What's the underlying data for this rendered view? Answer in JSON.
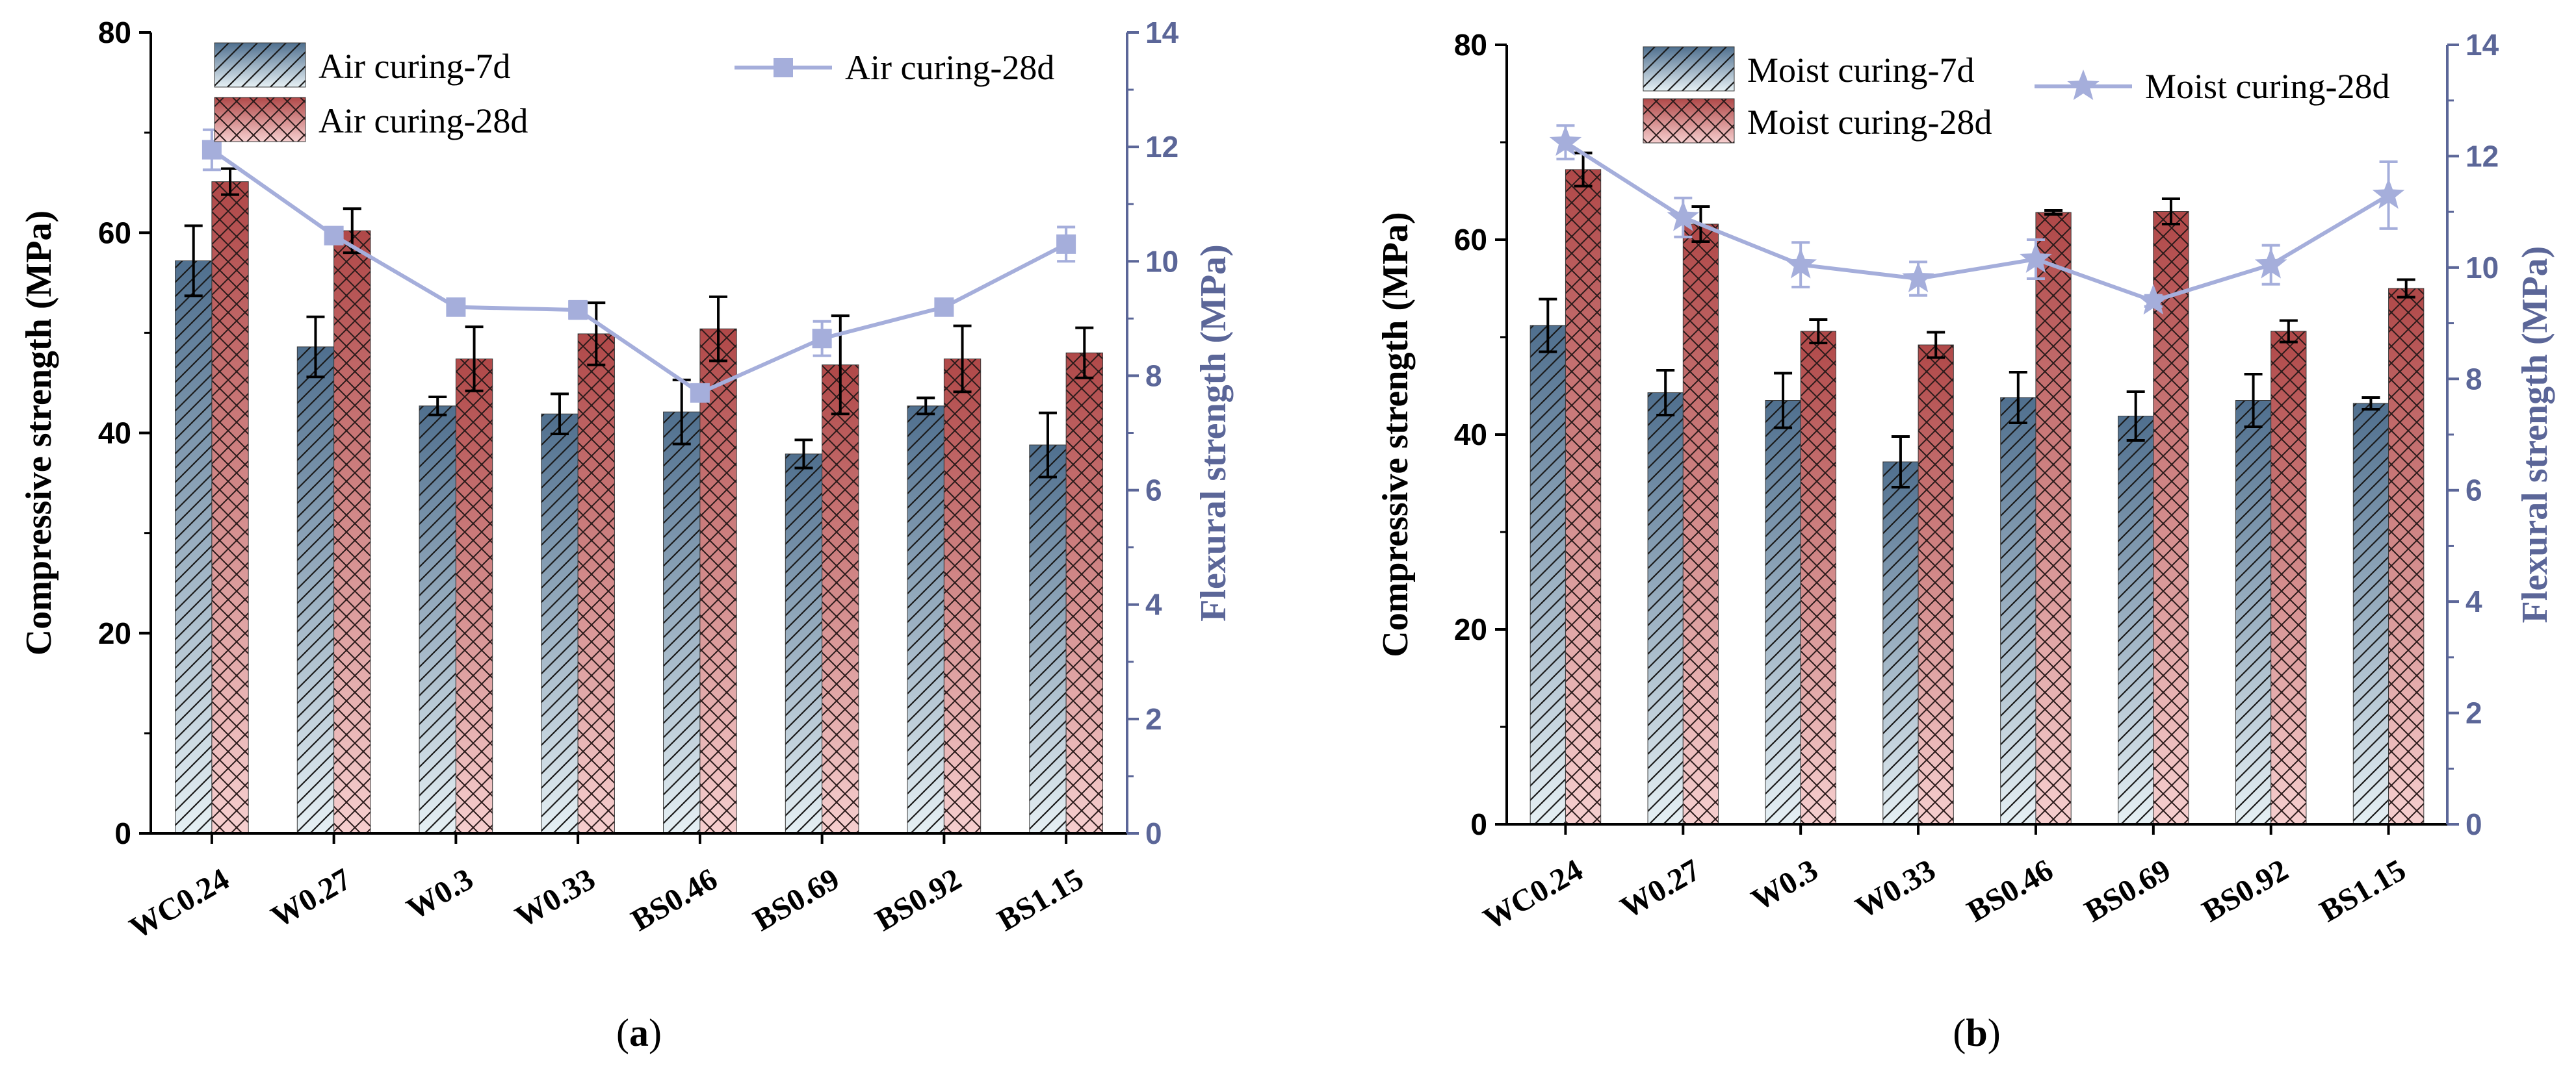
{
  "colors": {
    "bar7d_top": "#4f6f8e",
    "bar7d_bottom": "#e6f0f4",
    "bar28d_top": "#b04848",
    "bar28d_bottom": "#f6cfcf",
    "line": "#a5aedb",
    "right_axis": "#5b6698",
    "error": "#000000"
  },
  "chart_data": [
    {
      "type": "bar",
      "panel": "a",
      "caption_label": "a",
      "categories": [
        "WC0.24",
        "W0.27",
        "W0.3",
        "W0.33",
        "BS0.46",
        "BS0.69",
        "BS0.92",
        "BS1.15"
      ],
      "ylabel": "Compressive strength (MPa)",
      "ylim": [
        0,
        80
      ],
      "yticks": [
        "0",
        "20",
        "40",
        "60",
        "80"
      ],
      "y2label": "Flexural strength (MPa)",
      "y2lim": [
        0,
        14
      ],
      "y2ticks": [
        "0",
        "2",
        "4",
        "6",
        "8",
        "10",
        "12",
        "14"
      ],
      "series": [
        {
          "name": "Air curing-7d",
          "kind": "bar",
          "values": [
            57.2,
            48.6,
            42.7,
            41.9,
            42.1,
            37.9,
            42.7,
            38.8
          ],
          "errors": [
            3.5,
            3.0,
            0.9,
            2.0,
            3.2,
            1.4,
            0.8,
            3.2
          ]
        },
        {
          "name": "Air curing-28d",
          "kind": "bar",
          "values": [
            65.1,
            60.2,
            47.4,
            49.9,
            50.4,
            46.8,
            47.4,
            48.0
          ],
          "errors": [
            1.3,
            2.2,
            3.2,
            3.1,
            3.2,
            4.9,
            3.3,
            2.5
          ]
        },
        {
          "name": "Air curing-28d",
          "kind": "line",
          "axis": "right",
          "marker": "square",
          "values": [
            11.95,
            10.45,
            9.2,
            9.15,
            7.7,
            8.65,
            9.2,
            10.3
          ],
          "errors": [
            0.35,
            0.1,
            0.1,
            0.15,
            0.1,
            0.3,
            0.1,
            0.3
          ]
        }
      ]
    },
    {
      "type": "bar",
      "panel": "b",
      "caption_label": "b",
      "categories": [
        "WC0.24",
        "W0.27",
        "W0.3",
        "W0.33",
        "BS0.46",
        "BS0.69",
        "BS0.92",
        "BS1.15"
      ],
      "ylabel": "Compressive strength (MPa)",
      "ylim": [
        0,
        80
      ],
      "yticks": [
        "0",
        "20",
        "40",
        "60",
        "80"
      ],
      "y2label": "Flexural strength (MPa)",
      "y2lim": [
        0,
        14
      ],
      "y2ticks": [
        "0",
        "2",
        "4",
        "6",
        "8",
        "10",
        "12",
        "14"
      ],
      "series": [
        {
          "name": "Moist curing-7d",
          "kind": "bar",
          "values": [
            51.2,
            44.3,
            43.5,
            37.2,
            43.8,
            41.9,
            43.5,
            43.2
          ],
          "errors": [
            2.7,
            2.3,
            2.8,
            2.6,
            2.6,
            2.5,
            2.7,
            0.6
          ]
        },
        {
          "name": "Moist curing-28d",
          "kind": "bar",
          "values": [
            67.2,
            61.6,
            50.6,
            49.2,
            62.8,
            62.9,
            50.6,
            55.0
          ],
          "errors": [
            1.7,
            1.8,
            1.2,
            1.3,
            0.2,
            1.3,
            1.1,
            0.9
          ]
        },
        {
          "name": "Moist curing-28d",
          "kind": "line",
          "axis": "right",
          "marker": "star",
          "values": [
            12.25,
            10.9,
            10.05,
            9.8,
            10.15,
            9.4,
            10.05,
            11.3
          ],
          "errors": [
            0.3,
            0.35,
            0.4,
            0.3,
            0.35,
            0.1,
            0.35,
            0.6
          ]
        }
      ]
    }
  ]
}
